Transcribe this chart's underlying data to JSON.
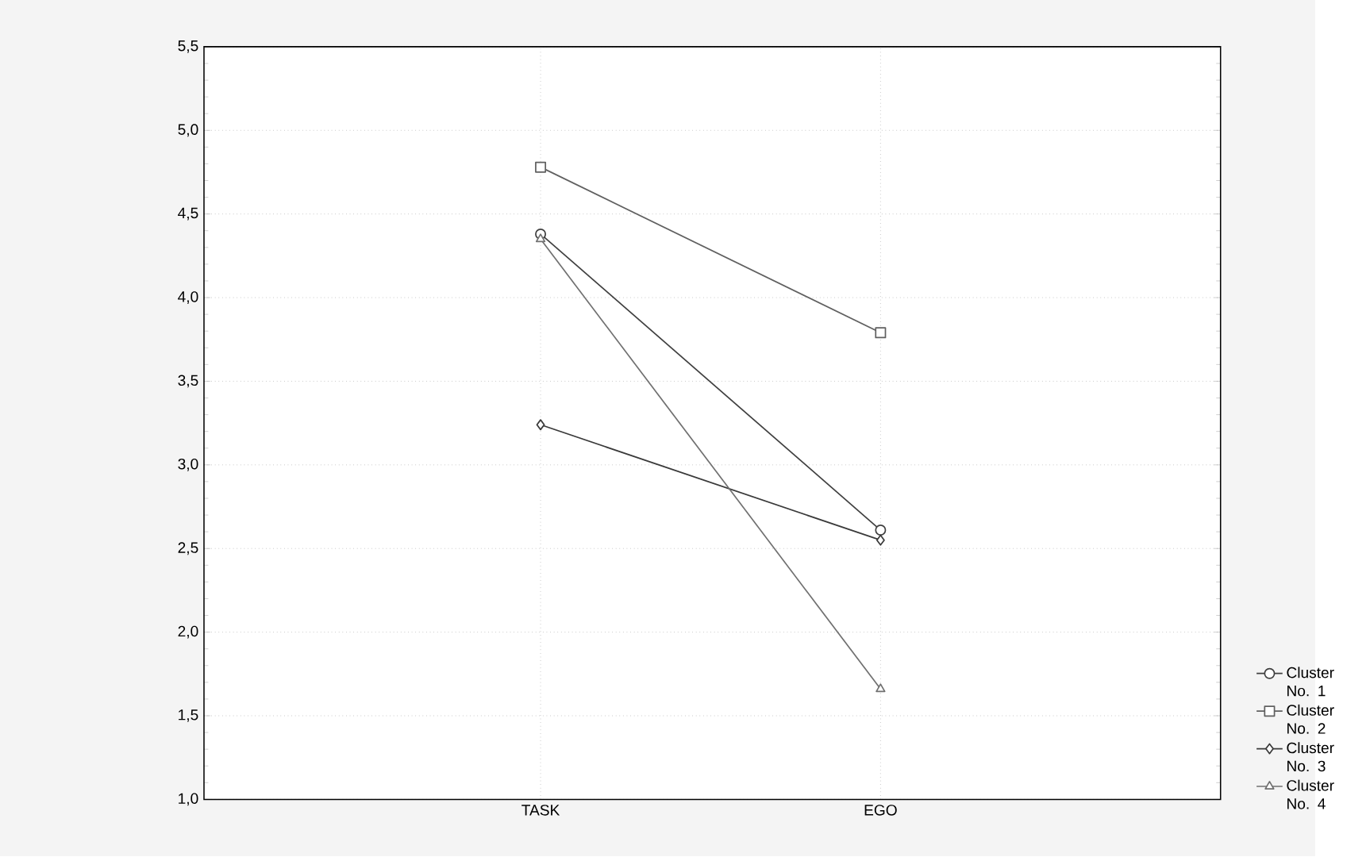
{
  "chart_data": {
    "type": "line",
    "categories": [
      "TASK",
      "EGO"
    ],
    "series": [
      {
        "name": "Cluster No. 1",
        "color": "#404040",
        "marker": "circle",
        "values": [
          4.38,
          2.61
        ]
      },
      {
        "name": "Cluster No. 2",
        "color": "#606060",
        "marker": "square",
        "values": [
          4.78,
          3.79
        ]
      },
      {
        "name": "Cluster No. 3",
        "color": "#3a3a3a",
        "marker": "diamond",
        "values": [
          3.24,
          2.55
        ]
      },
      {
        "name": "Cluster No. 4",
        "color": "#707070",
        "marker": "triangle",
        "values": [
          4.35,
          1.66
        ]
      }
    ],
    "ylim": [
      1.0,
      5.5
    ],
    "yticks": [
      {
        "value": 1.0,
        "label": "1,0"
      },
      {
        "value": 1.5,
        "label": "1,5"
      },
      {
        "value": 2.0,
        "label": "2,0"
      },
      {
        "value": 2.5,
        "label": "2,5"
      },
      {
        "value": 3.0,
        "label": "3,0"
      },
      {
        "value": 3.5,
        "label": "3,5"
      },
      {
        "value": 4.0,
        "label": "4,0"
      },
      {
        "value": 4.5,
        "label": "4,5"
      },
      {
        "value": 5.0,
        "label": "5,0"
      },
      {
        "value": 5.5,
        "label": "5,5"
      }
    ],
    "grid": true,
    "legend": "right"
  }
}
